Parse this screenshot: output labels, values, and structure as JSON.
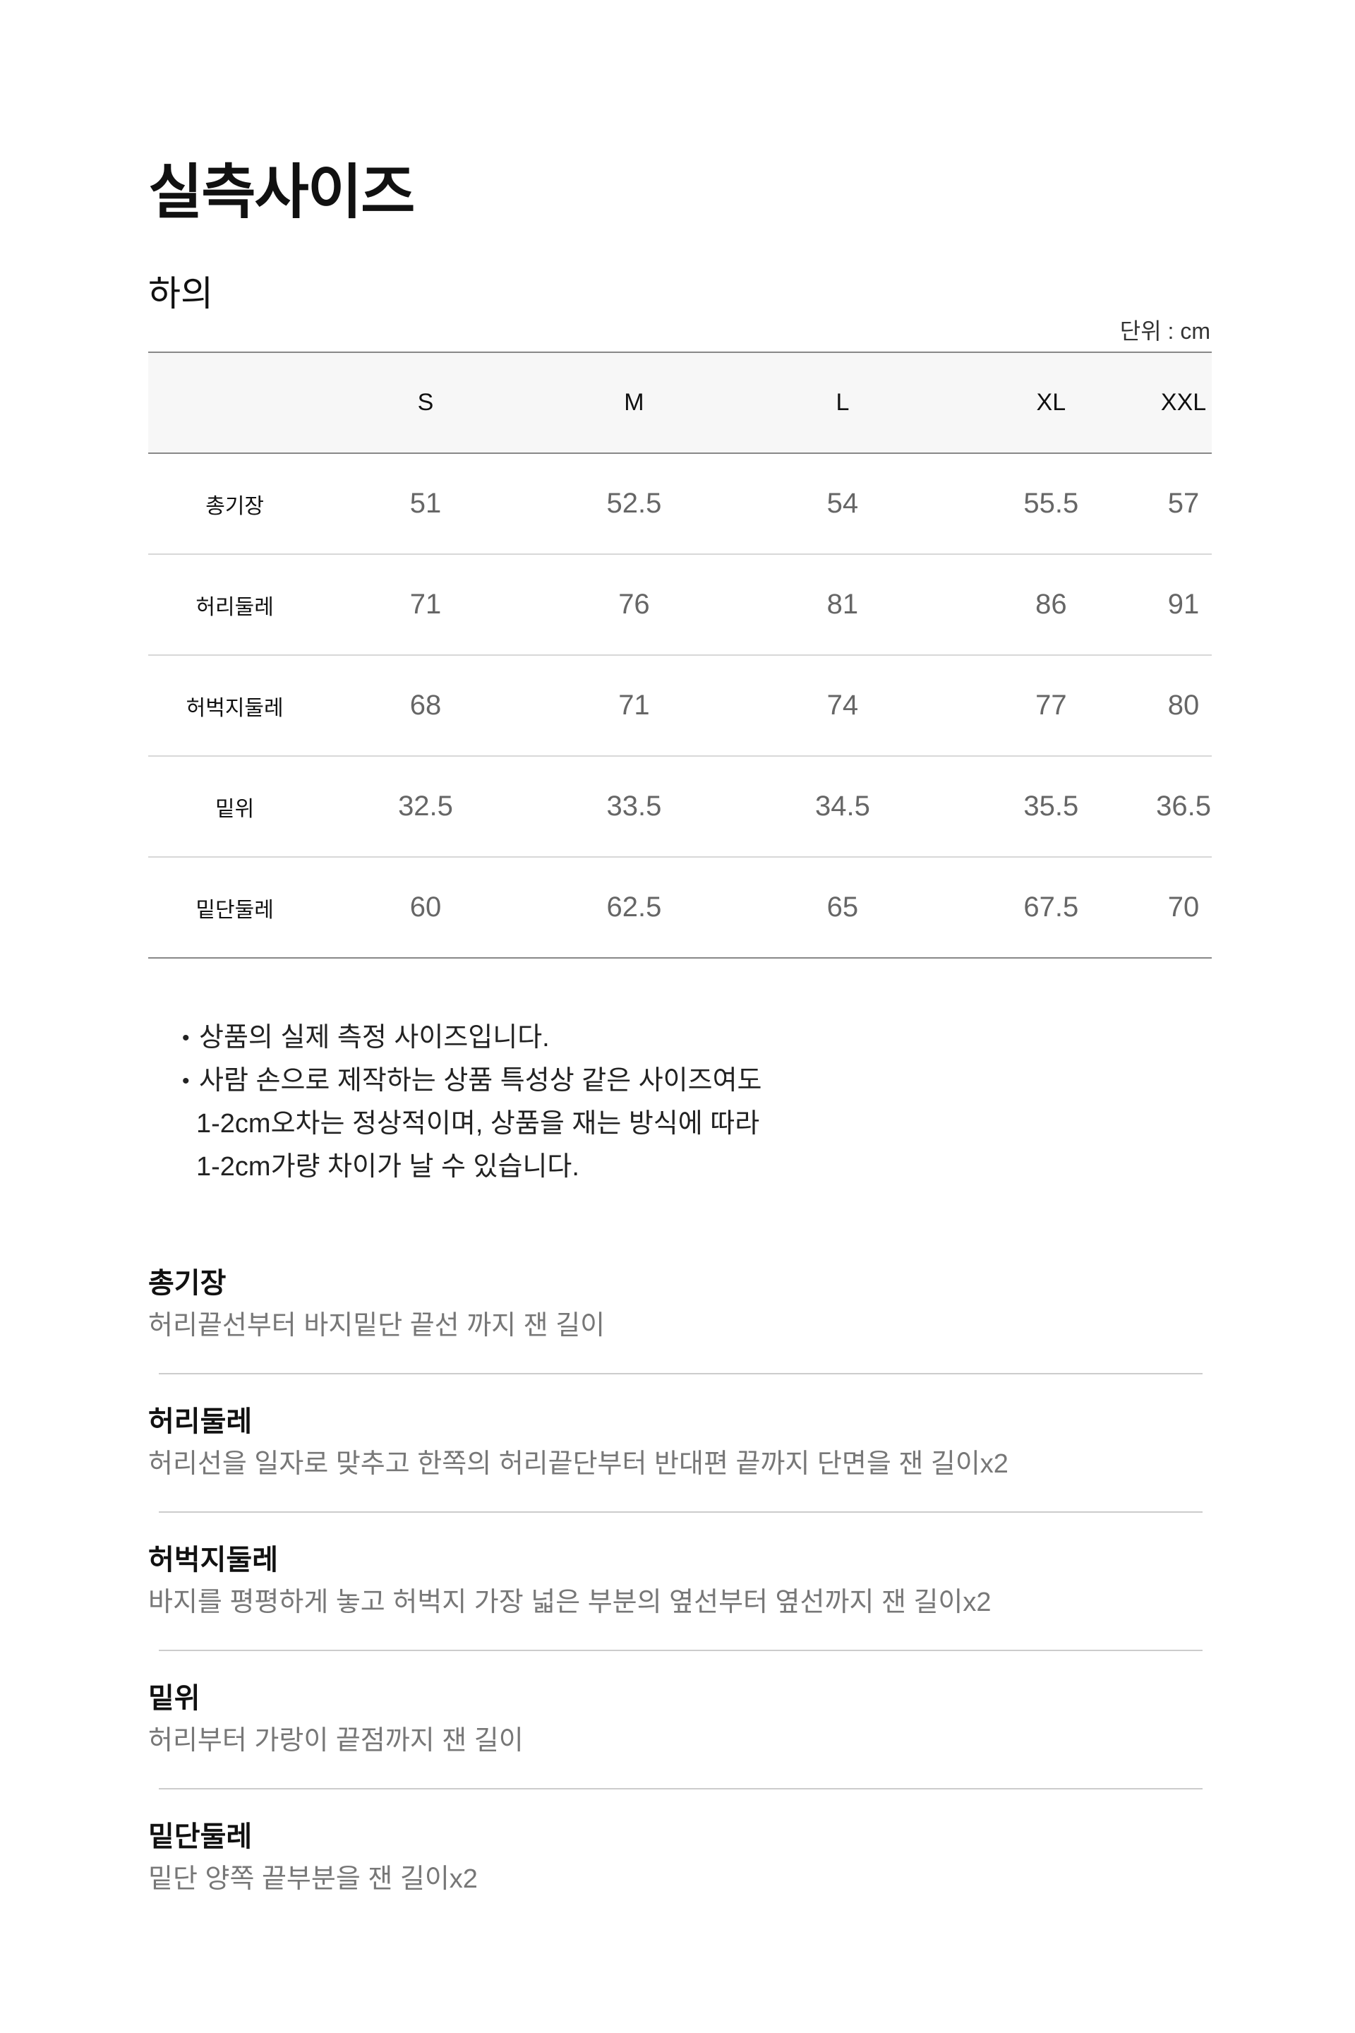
{
  "title": "실측사이즈",
  "subtitle": "하의",
  "unit": "단위 : cm",
  "table": {
    "headers": [
      "",
      "S",
      "M",
      "L",
      "XL",
      "XXL"
    ],
    "rows": [
      {
        "label": "총기장",
        "values": [
          "51",
          "52.5",
          "54",
          "55.5",
          "57"
        ]
      },
      {
        "label": "허리둘레",
        "values": [
          "71",
          "76",
          "81",
          "86",
          "91"
        ]
      },
      {
        "label": "허벅지둘레",
        "values": [
          "68",
          "71",
          "74",
          "77",
          "80"
        ]
      },
      {
        "label": "밑위",
        "values": [
          "32.5",
          "33.5",
          "34.5",
          "35.5",
          "36.5"
        ]
      },
      {
        "label": "밑단둘레",
        "values": [
          "60",
          "62.5",
          "65",
          "67.5",
          "70"
        ]
      }
    ]
  },
  "notes": [
    {
      "lines": [
        "상품의 실제 측정 사이즈입니다."
      ]
    },
    {
      "lines": [
        "사람 손으로 제작하는 상품 특성상 같은 사이즈여도",
        "1-2cm오차는 정상적이며, 상품을 재는 방식에 따라",
        "1-2cm가량 차이가 날 수 있습니다."
      ]
    }
  ],
  "definitions": [
    {
      "term": "총기장",
      "desc": "허리끝선부터 바지밑단 끝선 까지 잰 길이"
    },
    {
      "term": "허리둘레",
      "desc": "허리선을 일자로 맞추고 한쪽의 허리끝단부터 반대편 끝까지 단면을 잰 길이x2"
    },
    {
      "term": "허벅지둘레",
      "desc": "바지를 평평하게 놓고 허벅지 가장 넓은 부분의 옆선부터 옆선까지 잰 길이x2"
    },
    {
      "term": "밑위",
      "desc": "허리부터 가랑이 끝점까지 잰 길이"
    },
    {
      "term": "밑단둘레",
      "desc": "밑단 양쪽 끝부분을 잰 길이x2"
    }
  ]
}
